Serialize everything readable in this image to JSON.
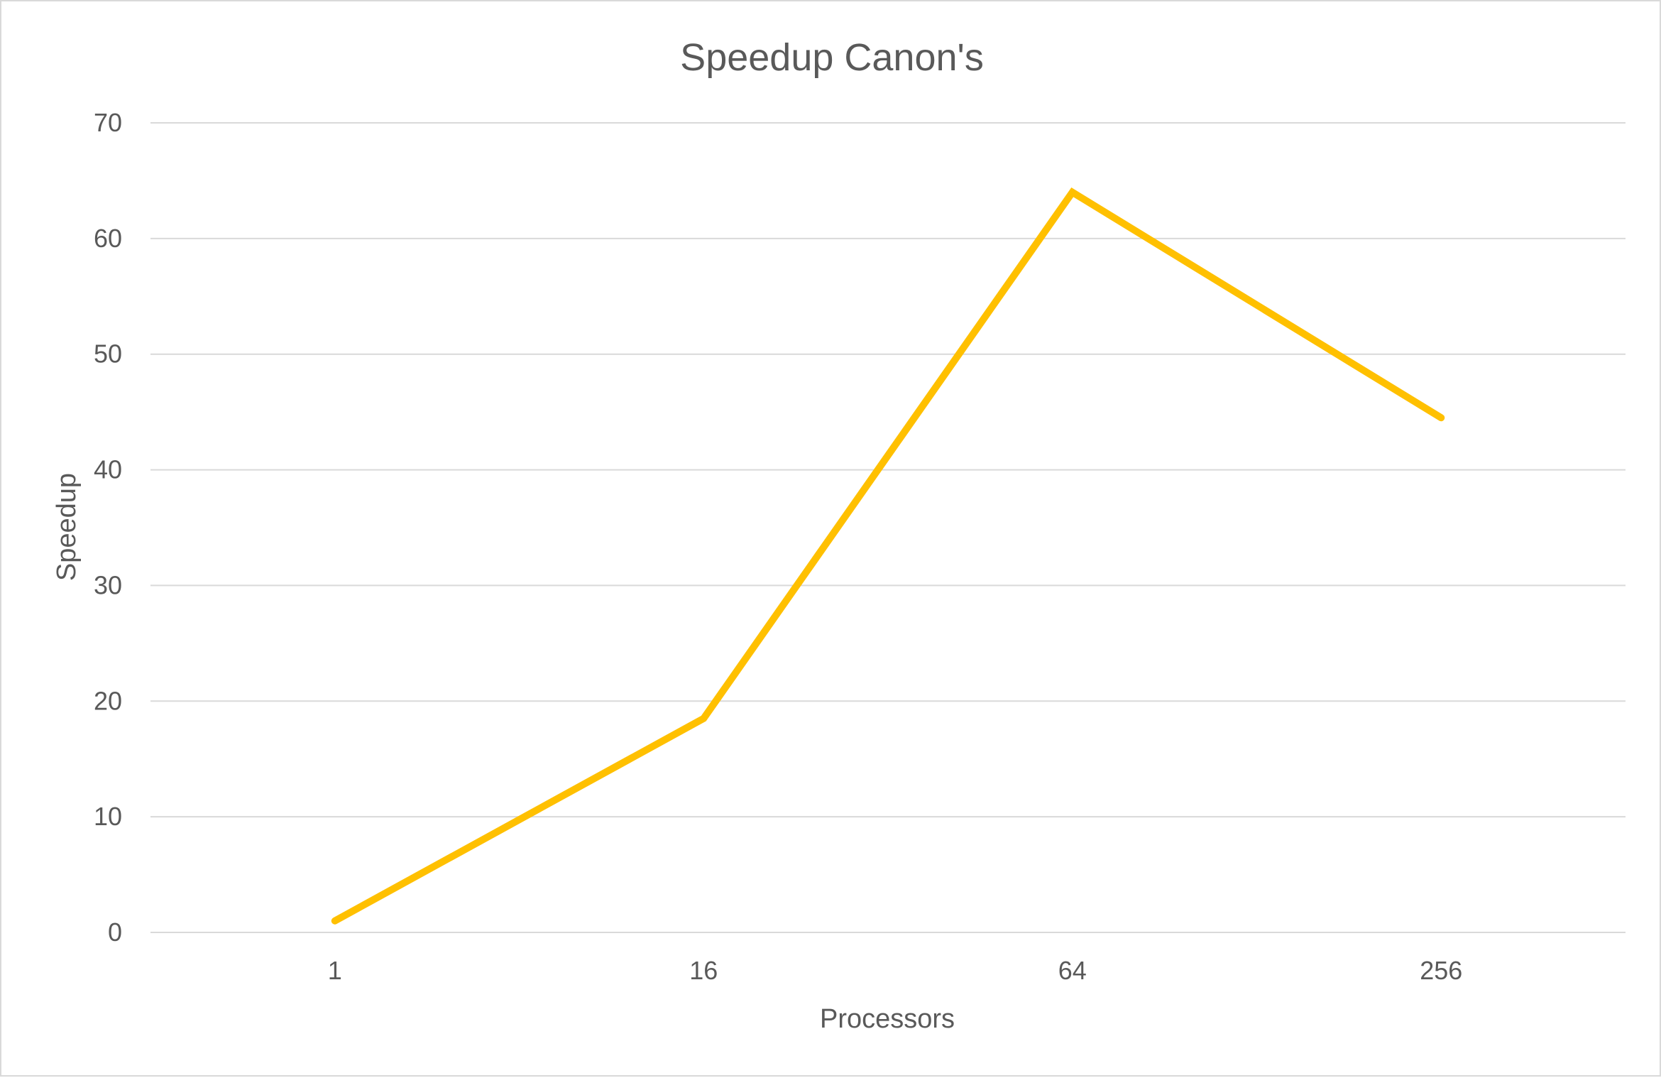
{
  "chart_data": {
    "type": "line",
    "title": "Speedup Canon's",
    "xlabel": "Processors",
    "ylabel": "Speedup",
    "categories": [
      "1",
      "16",
      "64",
      "256"
    ],
    "series": [
      {
        "values": [
          1,
          18.5,
          64,
          44.5
        ]
      }
    ],
    "ylim": [
      0,
      70
    ],
    "yticks": [
      0,
      10,
      20,
      30,
      40,
      50,
      60,
      70
    ],
    "grid": true,
    "legend": "none",
    "colors": {
      "line": "#FFC000",
      "grid": "#d9d9d9",
      "text": "#595959"
    }
  }
}
